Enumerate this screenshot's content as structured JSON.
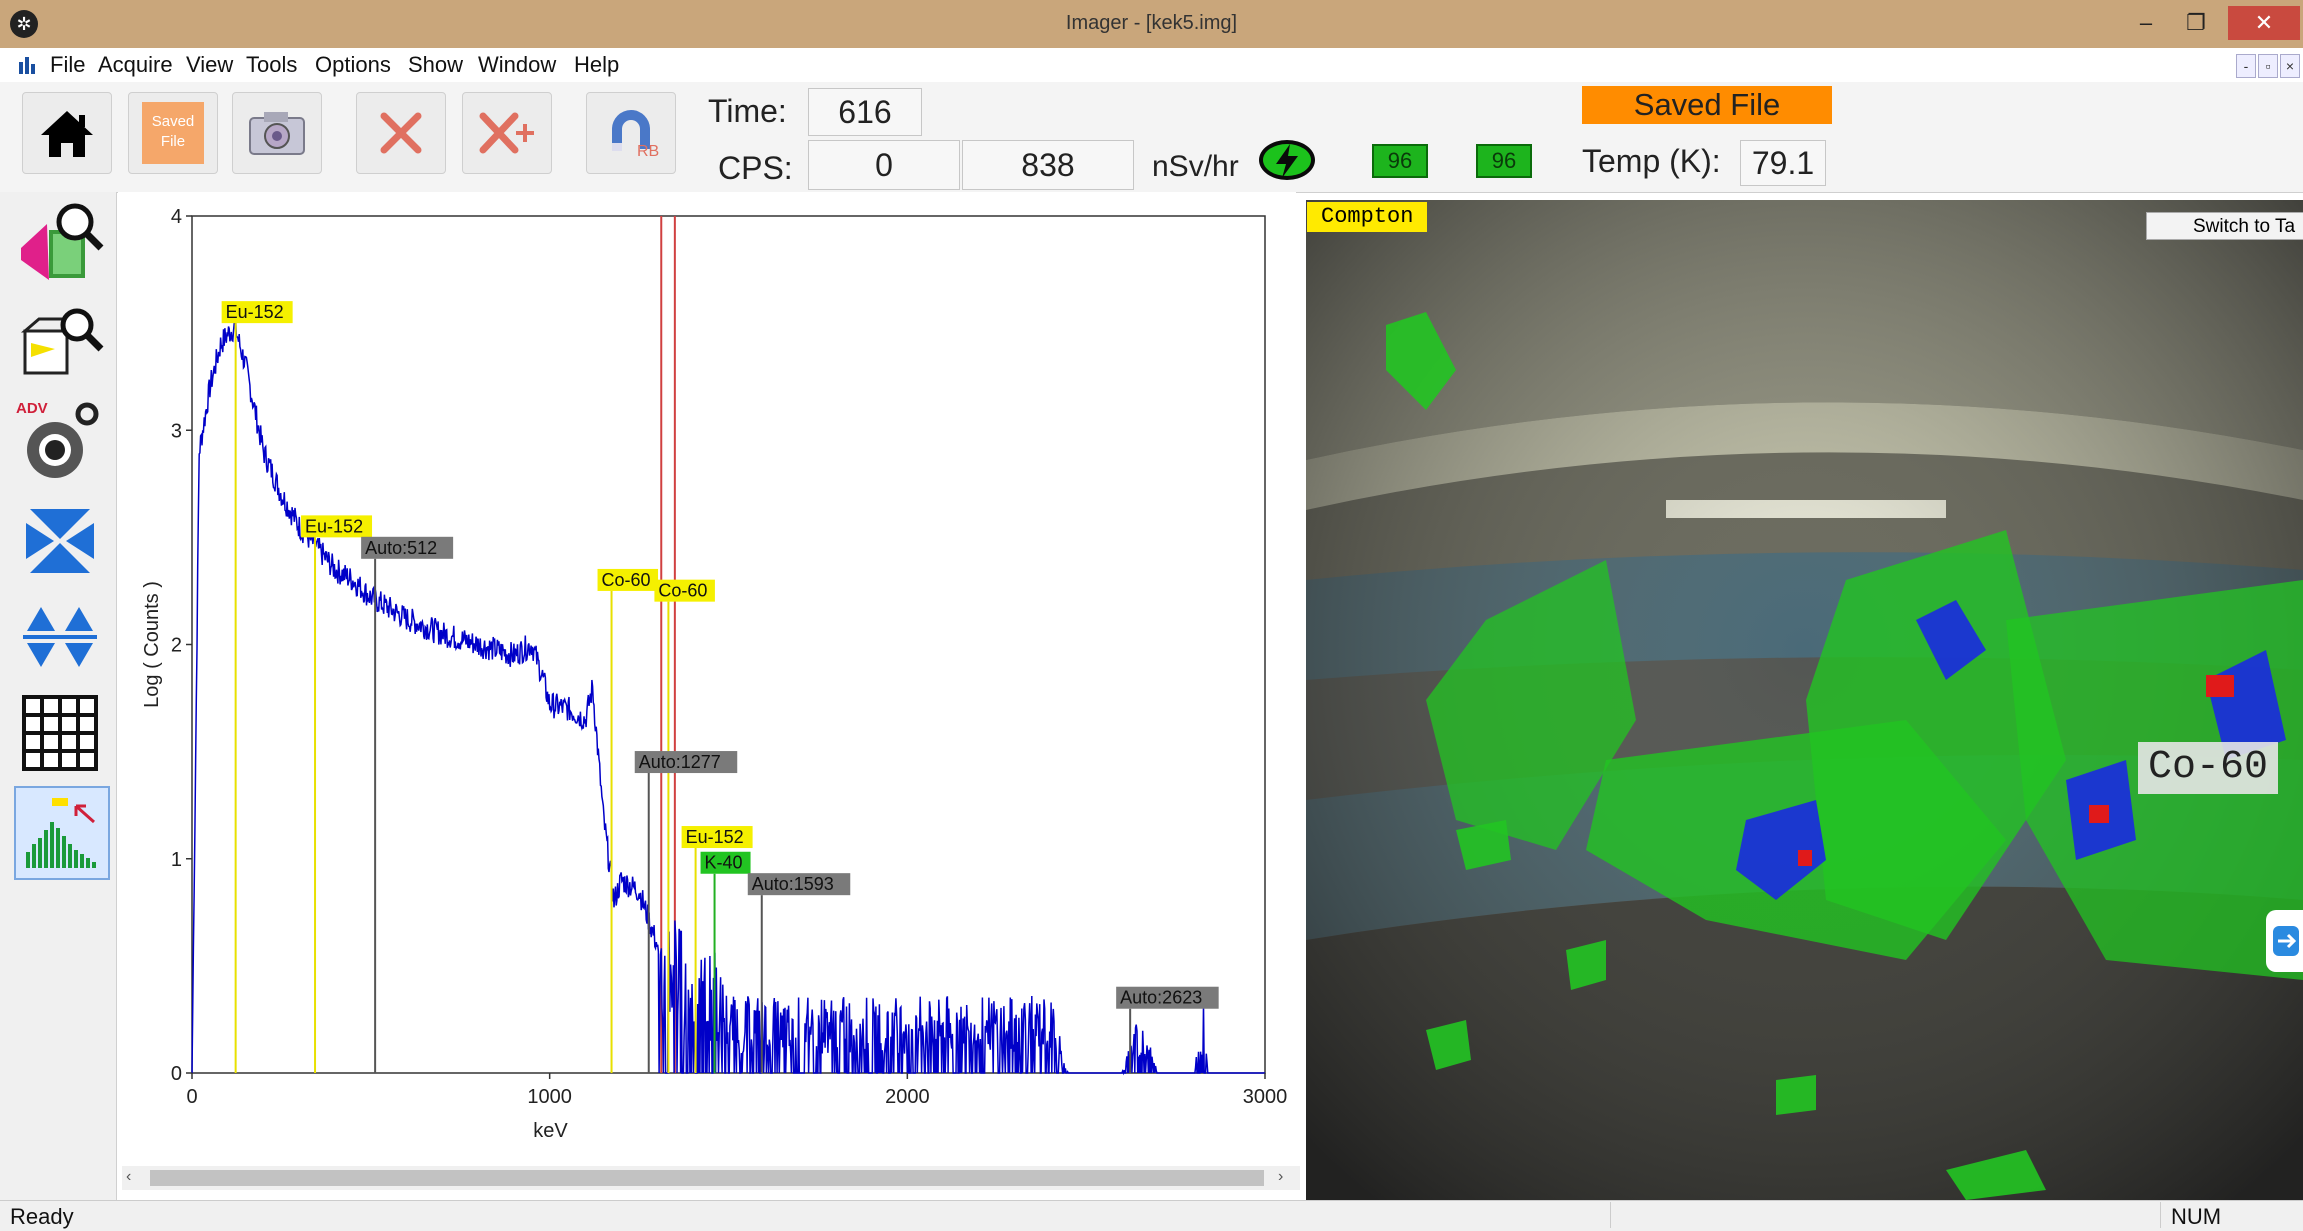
{
  "window": {
    "title": "Imager - [kek5.img]"
  },
  "window_controls": {
    "minimize": "–",
    "restore": "❐",
    "close": "✕"
  },
  "menu": [
    "File",
    "Acquire",
    "View",
    "Tools",
    "Options",
    "Show",
    "Window",
    "Help"
  ],
  "toolbar": {
    "saved_file_icon_text": [
      "Saved",
      "File"
    ],
    "rb_text": "RB",
    "time_label": "Time:",
    "time_value": "616",
    "cps_label": "CPS:",
    "cps_value": "0",
    "count_value": "838",
    "dose_unit": "nSv/hr",
    "battery_1": "96",
    "battery_2": "96",
    "saved_file_banner": "Saved File",
    "temp_label": "Temp (K):",
    "temp_value": "79.1",
    "icons": [
      "home-icon",
      "saved-file-icon",
      "camera-icon",
      "delete-icon",
      "delete-add-icon",
      "magnet-rb-icon"
    ]
  },
  "sidebar_icons": [
    "compton-search-icon",
    "box-search-icon",
    "advanced-settings-icon",
    "collapse-icon",
    "expand-icon",
    "grid-icon",
    "spectrum-peaks-icon"
  ],
  "sidebar_adv_text": "ADV",
  "chart_data": {
    "type": "line",
    "xlabel": "keV",
    "ylabel": "Log ( Counts )",
    "xlim": [
      0,
      3000
    ],
    "ylim": [
      0,
      4
    ],
    "x_ticks": [
      "0",
      "1000",
      "2000",
      "3000"
    ],
    "y_ticks": [
      "0",
      "1",
      "2",
      "3",
      "4"
    ],
    "spectrum_color": "#0000c8",
    "spectrum_envelope": [
      [
        0,
        0
      ],
      [
        20,
        2.9
      ],
      [
        50,
        3.2
      ],
      [
        80,
        3.4
      ],
      [
        100,
        3.45
      ],
      [
        120,
        3.48
      ],
      [
        150,
        3.3
      ],
      [
        200,
        2.9
      ],
      [
        250,
        2.7
      ],
      [
        300,
        2.55
      ],
      [
        350,
        2.45
      ],
      [
        400,
        2.35
      ],
      [
        450,
        2.3
      ],
      [
        500,
        2.22
      ],
      [
        600,
        2.12
      ],
      [
        700,
        2.05
      ],
      [
        800,
        2.0
      ],
      [
        900,
        1.95
      ],
      [
        950,
        2.0
      ],
      [
        980,
        1.85
      ],
      [
        1000,
        1.72
      ],
      [
        1050,
        1.7
      ],
      [
        1100,
        1.65
      ],
      [
        1120,
        1.8
      ],
      [
        1150,
        1.2
      ],
      [
        1180,
        0.8
      ],
      [
        1200,
        0.9
      ],
      [
        1250,
        0.85
      ],
      [
        1300,
        0.6
      ],
      [
        1330,
        0.7
      ],
      [
        1400,
        0.45
      ],
      [
        1460,
        0.5
      ],
      [
        1500,
        0.3
      ],
      [
        1600,
        0.3
      ],
      [
        1800,
        0.3
      ],
      [
        2000,
        0.3
      ],
      [
        2200,
        0.3
      ],
      [
        2400,
        0.3
      ],
      [
        2450,
        0.0
      ],
      [
        2600,
        0.0
      ],
      [
        2650,
        0.25
      ],
      [
        2700,
        0.0
      ],
      [
        2800,
        0.0
      ],
      [
        2830,
        0.3
      ],
      [
        2840,
        0.0
      ],
      [
        3000,
        0.0
      ]
    ],
    "markers": [
      {
        "label": "Eu-152",
        "energy": 122,
        "type": "yellow",
        "label_level": 3.5
      },
      {
        "label": "Eu-152",
        "energy": 344,
        "type": "yellow",
        "label_level": 2.5
      },
      {
        "label": "Auto:512",
        "energy": 512,
        "type": "gray",
        "label_level": 2.4
      },
      {
        "label": "Co-60",
        "energy": 1173,
        "type": "yellow",
        "label_level": 2.25
      },
      {
        "label": "Co-60",
        "energy": 1332,
        "type": "yellow",
        "label_level": 2.2
      },
      {
        "label": "Auto:1277",
        "energy": 1277,
        "type": "gray",
        "label_level": 1.4
      },
      {
        "label": "Eu-152",
        "energy": 1408,
        "type": "yellow",
        "label_level": 1.05
      },
      {
        "label": "K-40",
        "energy": 1461,
        "type": "green",
        "label_level": 0.93
      },
      {
        "label": "Auto:1593",
        "energy": 1593,
        "type": "gray",
        "label_level": 0.83
      },
      {
        "label": "Auto:2623",
        "energy": 2623,
        "type": "gray",
        "label_level": 0.3
      }
    ],
    "cursor_lines_kev": [
      1312,
      1350
    ]
  },
  "image_panel": {
    "mode_label": "Compton",
    "switch_button": "Switch to Ta",
    "isotope_label": "Co-60"
  },
  "status": {
    "left": "Ready",
    "right": "NUM"
  }
}
